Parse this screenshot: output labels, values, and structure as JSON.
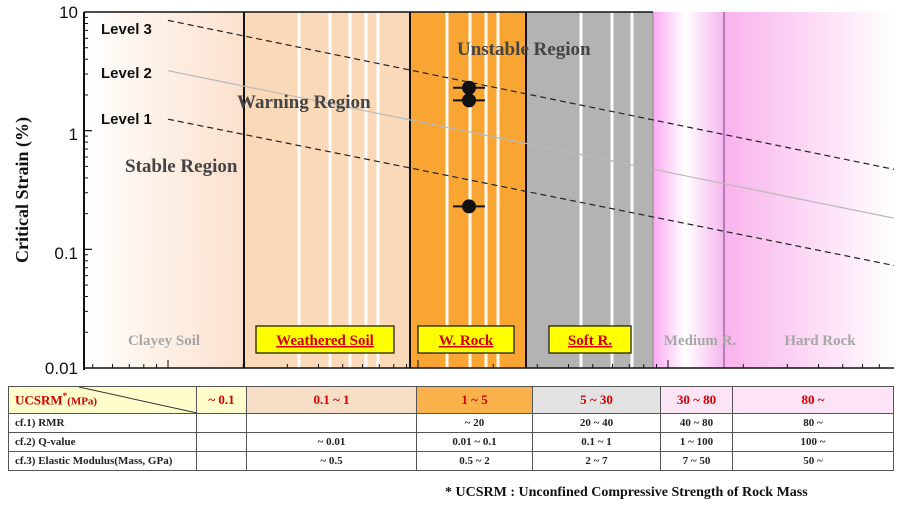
{
  "chart_data": {
    "type": "line",
    "ylabel": "Critical Strain (%)",
    "yscale": "log",
    "ylim": [
      0.01,
      10
    ],
    "y_ticks": [
      "10",
      "1",
      "0.1",
      "0.01"
    ],
    "x_axis": "UCSRM (MPa), log scale, no printed ticks",
    "series": [
      {
        "name": "Level 3",
        "points": [
          [
            0.1,
            8.5
          ],
          [
            150,
            0.36
          ]
        ]
      },
      {
        "name": "Level 2",
        "points": [
          [
            0.1,
            3.2
          ],
          [
            150,
            0.14
          ]
        ]
      },
      {
        "name": "Level 1",
        "points": [
          [
            0.1,
            1.25
          ],
          [
            150,
            0.056
          ]
        ]
      }
    ],
    "scatter": [
      2.3,
      1.8,
      0.23
    ],
    "region_labels": [
      "Unstable Region",
      "Warning Region",
      "Stable Region"
    ],
    "zones": [
      {
        "label": "Clayey Soil",
        "boxed": false,
        "color": "#fde7d6"
      },
      {
        "label": "Weathered Soil",
        "boxed": true,
        "color": "#f8d4ad"
      },
      {
        "label": "W. Rock",
        "boxed": true,
        "color": "#f9a534"
      },
      {
        "label": "Soft R.",
        "boxed": true,
        "color": "#b0b0b0"
      },
      {
        "label": "Medium R.",
        "boxed": false,
        "color": "#f4b4f0"
      },
      {
        "label": "Hard Rock",
        "boxed": false,
        "color": "#fbc4ee"
      }
    ],
    "grid": "vertical white lines",
    "legend": "none (lines labeled at left)"
  },
  "table": {
    "header": {
      "label": "UCSRM",
      "label_sup": "*",
      "label_unit": "(MPa)",
      "cells": [
        "~  0.1",
        "0.1  ~ 1",
        "1  ~  5",
        "5  ~  30",
        "30 ~ 80",
        "80    ~"
      ]
    },
    "rows": [
      {
        "label": "cf.1) RMR",
        "cells": [
          "",
          "",
          "~      20",
          "20   ~   40",
          "40  ~ 80",
          "80     ~"
        ]
      },
      {
        "label": "cf.2) Q-value",
        "cells": [
          "",
          "~      0.01",
          "0.01  ~ 0.1",
          "0.1   ~   1",
          "1  ~ 100",
          "100    ~"
        ]
      },
      {
        "label": "cf.3) Elastic Modulus(Mass, GPa)",
        "cells": [
          "",
          "~      0.5",
          "0.5  ~  2",
          "2    ~    7",
          "7  ~  50",
          "50     ~"
        ]
      }
    ]
  },
  "footnote": "* UCSRM : Unconfined Compressive Strength of Rock Mass"
}
